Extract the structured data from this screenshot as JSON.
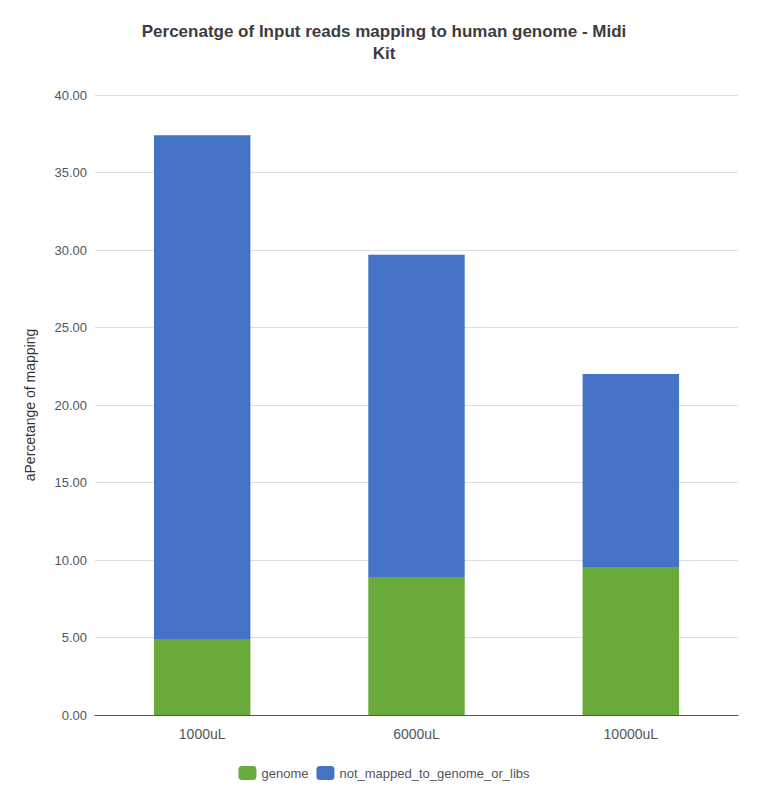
{
  "chart_data": {
    "type": "bar",
    "title": "Percenatge of Input reads mapping to human genome - Midi\nKit",
    "ylabel": "aPercetange of mapping",
    "categories": [
      "1000uL",
      "6000uL",
      "10000uL"
    ],
    "series": [
      {
        "name": "genome",
        "color": "#6aaa3a",
        "values": [
          4.9,
          8.9,
          9.5
        ]
      },
      {
        "name": "not_mapped_to_genome_or_libs",
        "color": "#4472c4",
        "values": [
          32.5,
          20.8,
          12.5
        ]
      }
    ],
    "stacked": true,
    "ylim": [
      0,
      40
    ],
    "yticks": [
      {
        "value": 0,
        "label": "0.00"
      },
      {
        "value": 5,
        "label": "5.00"
      },
      {
        "value": 10,
        "label": "10.00"
      },
      {
        "value": 15,
        "label": "15.00"
      },
      {
        "value": 20,
        "label": "20.00"
      },
      {
        "value": 25,
        "label": "25.00"
      },
      {
        "value": 30,
        "label": "30.00"
      },
      {
        "value": 35,
        "label": "35.00"
      },
      {
        "value": 40,
        "label": "40.00"
      }
    ],
    "grid": true,
    "legend": "bottom"
  }
}
